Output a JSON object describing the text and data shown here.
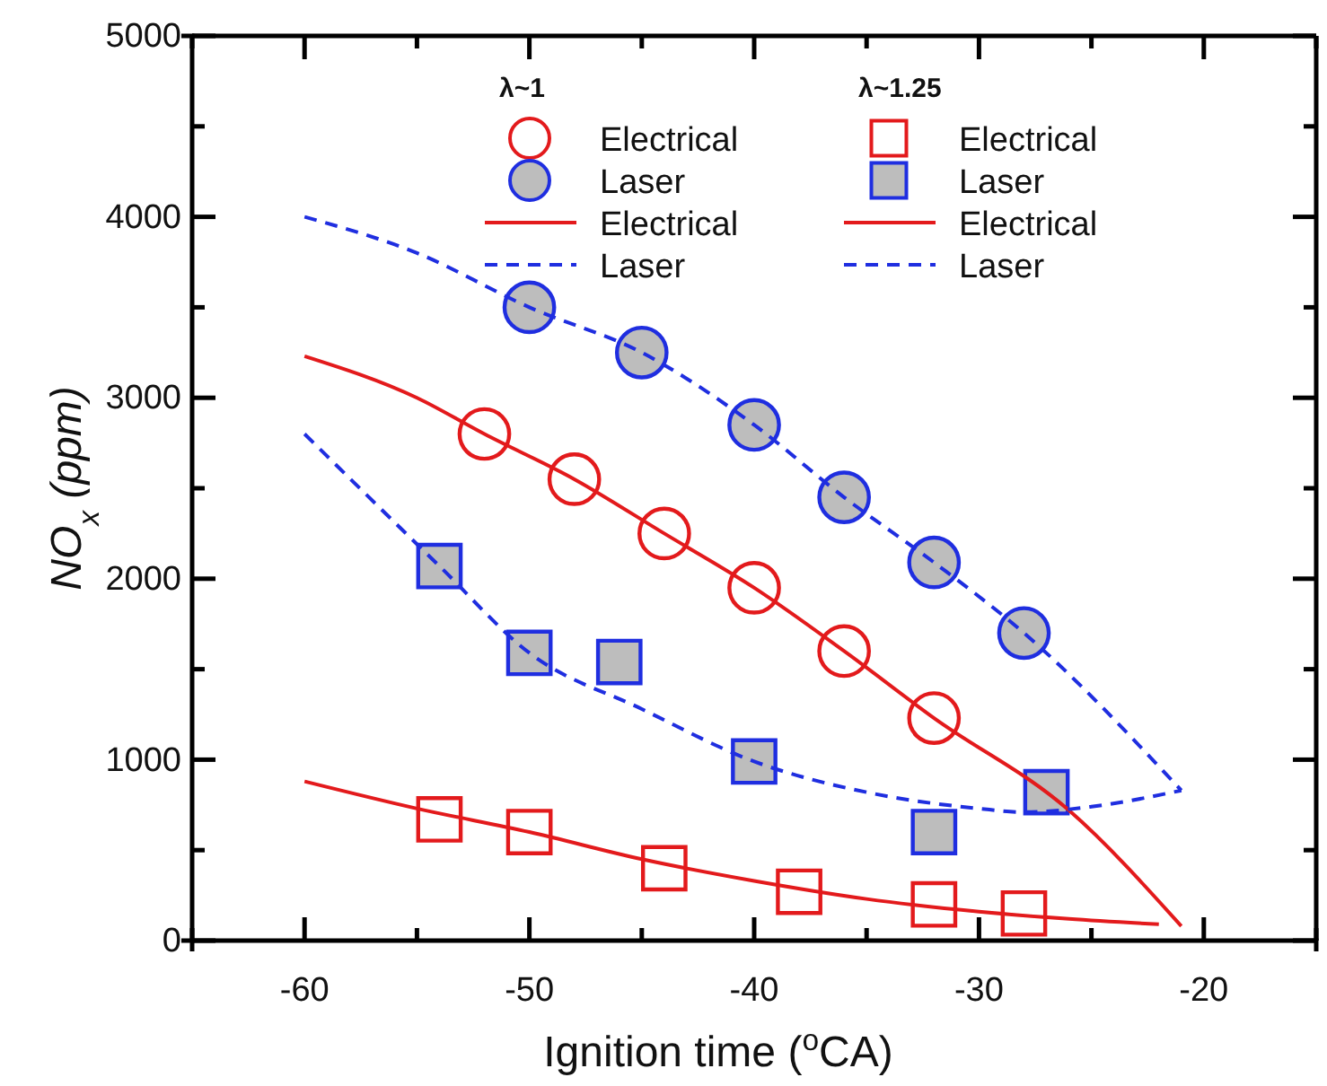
{
  "chart_data": {
    "type": "scatter",
    "xlabel": "Ignition time ($^{o}$CA)",
    "ylabel": "NO$_{x}$ (ppm)",
    "xlim": [
      -65,
      -15
    ],
    "xticks": [
      {
        "value": -65,
        "label": null
      },
      -60,
      {
        "value": -55,
        "label": null
      },
      -50,
      {
        "value": -45,
        "label": null
      },
      -40,
      {
        "value": -35,
        "label": null
      },
      -30,
      {
        "value": -25,
        "label": null
      },
      -20,
      {
        "value": -15,
        "label": null
      }
    ],
    "ylim": [
      0,
      5000
    ],
    "yticks": [
      0,
      {
        "value": 500,
        "label": null
      },
      1000,
      {
        "value": 1500,
        "label": null
      },
      2000,
      {
        "value": 2500,
        "label": null
      },
      3000,
      {
        "value": 3500,
        "label": null
      },
      4000,
      {
        "value": 4500,
        "label": null
      },
      5000
    ],
    "grid": false,
    "legend": "top right",
    "annotations": [
      "λ~1",
      "λ~1.25"
    ],
    "series": [
      {
        "name": "Electrical",
        "type": "scatter",
        "marker": "circle",
        "color": "#e31a1c",
        "x": [
          -52,
          -48,
          -44,
          -40,
          -36,
          -32
        ],
        "values": [
          2800,
          2550,
          2250,
          1950,
          1600,
          1230
        ]
      },
      {
        "name": "Laser",
        "type": "scatter",
        "marker": "circle",
        "color": "#1f2ee0",
        "x": [
          -50,
          -45,
          -40,
          -36,
          -32,
          -28
        ],
        "values": [
          3500,
          3250,
          2850,
          2450,
          2090,
          1700
        ]
      },
      {
        "name": "Electrical",
        "type": "line",
        "line_style": "solid",
        "color": "#e31a1c",
        "x": [
          -60,
          -55,
          -52,
          -48,
          -44,
          -40,
          -36,
          -32,
          -26,
          -21
        ],
        "values": [
          3230,
          3000,
          2800,
          2550,
          2250,
          1950,
          1600,
          1230,
          720,
          80
        ]
      },
      {
        "name": "Laser",
        "type": "line",
        "line_style": "dashed",
        "color": "#1f2ee0",
        "x": [
          -60,
          -55,
          -50,
          -45,
          -40,
          -36,
          -32,
          -28,
          -21
        ],
        "values": [
          4000,
          3800,
          3500,
          3250,
          2850,
          2450,
          2090,
          1700,
          830
        ]
      },
      {
        "name": "Electrical",
        "type": "scatter",
        "marker": "square",
        "color": "#e31a1c",
        "x": [
          -54,
          -50,
          -44,
          -38,
          -32,
          -28
        ],
        "values": [
          670,
          600,
          400,
          270,
          200,
          150
        ]
      },
      {
        "name": "Laser",
        "type": "scatter",
        "marker": "square",
        "color": "#1f2ee0",
        "x": [
          -54,
          -50,
          -46,
          -40,
          -32,
          -27
        ],
        "values": [
          2070,
          1590,
          1540,
          990,
          600,
          820
        ]
      },
      {
        "name": "Electrical",
        "type": "line",
        "line_style": "solid",
        "color": "#e31a1c",
        "x": [
          -60,
          -55,
          -50,
          -45,
          -40,
          -35,
          -30,
          -26,
          -22
        ],
        "values": [
          880,
          730,
          600,
          450,
          330,
          230,
          160,
          120,
          90
        ]
      },
      {
        "name": "Laser",
        "type": "line",
        "line_style": "dashed",
        "color": "#1f2ee0",
        "x": [
          -60,
          -54,
          -50,
          -45,
          -40,
          -35,
          -30,
          -28,
          -25,
          -21
        ],
        "values": [
          2800,
          2070,
          1590,
          1280,
          990,
          820,
          730,
          710,
          740,
          830
        ]
      }
    ]
  }
}
